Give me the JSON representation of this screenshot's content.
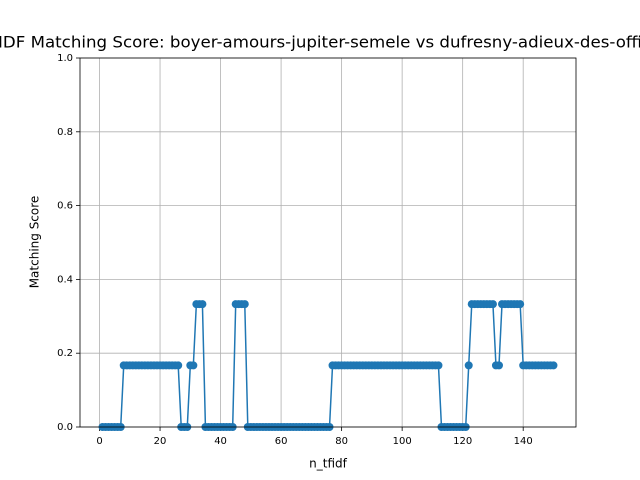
{
  "chart_data": {
    "type": "line",
    "title": "IDF Matching Score: boyer-amours-jupiter-semele vs dufresny-adieux-des-offi",
    "xlabel": "n_tfidf",
    "ylabel": "Matching Score",
    "x": [
      1,
      2,
      3,
      4,
      5,
      6,
      7,
      8,
      9,
      10,
      11,
      12,
      13,
      14,
      15,
      16,
      17,
      18,
      19,
      20,
      21,
      22,
      23,
      24,
      25,
      26,
      27,
      28,
      29,
      30,
      31,
      32,
      33,
      34,
      35,
      36,
      37,
      38,
      39,
      40,
      41,
      42,
      43,
      44,
      45,
      46,
      47,
      48,
      49,
      50,
      51,
      52,
      53,
      54,
      55,
      56,
      57,
      58,
      59,
      60,
      61,
      62,
      63,
      64,
      65,
      66,
      67,
      68,
      69,
      70,
      71,
      72,
      73,
      74,
      75,
      76,
      77,
      78,
      79,
      80,
      81,
      82,
      83,
      84,
      85,
      86,
      87,
      88,
      89,
      90,
      91,
      92,
      93,
      94,
      95,
      96,
      97,
      98,
      99,
      100,
      101,
      102,
      103,
      104,
      105,
      106,
      107,
      108,
      109,
      110,
      111,
      112,
      113,
      114,
      115,
      116,
      117,
      118,
      119,
      120,
      121,
      122,
      123,
      124,
      125,
      126,
      127,
      128,
      129,
      130,
      131,
      132,
      133,
      134,
      135,
      136,
      137,
      138,
      139,
      140,
      141,
      142,
      143,
      144,
      145,
      146,
      147,
      148,
      149,
      150
    ],
    "series": [
      {
        "color": "#1f77b4",
        "values": [
          0,
          0,
          0,
          0,
          0,
          0,
          0,
          0.167,
          0.167,
          0.167,
          0.167,
          0.167,
          0.167,
          0.167,
          0.167,
          0.167,
          0.167,
          0.167,
          0.167,
          0.167,
          0.167,
          0.167,
          0.167,
          0.167,
          0.167,
          0.167,
          0,
          0,
          0,
          0.167,
          0.167,
          0.333,
          0.333,
          0.333,
          0,
          0,
          0,
          0,
          0,
          0,
          0,
          0,
          0,
          0,
          0.333,
          0.333,
          0.333,
          0.333,
          0,
          0,
          0,
          0,
          0,
          0,
          0,
          0,
          0,
          0,
          0,
          0,
          0,
          0,
          0,
          0,
          0,
          0,
          0,
          0,
          0,
          0,
          0,
          0,
          0,
          0,
          0,
          0,
          0.167,
          0.167,
          0.167,
          0.167,
          0.167,
          0.167,
          0.167,
          0.167,
          0.167,
          0.167,
          0.167,
          0.167,
          0.167,
          0.167,
          0.167,
          0.167,
          0.167,
          0.167,
          0.167,
          0.167,
          0.167,
          0.167,
          0.167,
          0.167,
          0.167,
          0.167,
          0.167,
          0.167,
          0.167,
          0.167,
          0.167,
          0.167,
          0.167,
          0.167,
          0.167,
          0.167,
          0,
          0,
          0,
          0,
          0,
          0,
          0,
          0,
          0,
          0.167,
          0.333,
          0.333,
          0.333,
          0.333,
          0.333,
          0.333,
          0.333,
          0.333,
          0.167,
          0.167,
          0.333,
          0.333,
          0.333,
          0.333,
          0.333,
          0.333,
          0.333,
          0.167,
          0.167,
          0.167,
          0.167,
          0.167,
          0.167,
          0.167,
          0.167,
          0.167,
          0.167,
          0.167
        ]
      }
    ],
    "xlim": [
      -6.45,
      157.45
    ],
    "xticks": [
      0,
      20,
      40,
      60,
      80,
      100,
      120,
      140
    ],
    "ylim": [
      0,
      1
    ],
    "yticks": [
      {
        "value": 0,
        "label": "0.0"
      },
      0.2,
      0.4,
      0.6,
      0.8,
      {
        "value": 1,
        "label": "1.0"
      }
    ],
    "grid": true
  }
}
